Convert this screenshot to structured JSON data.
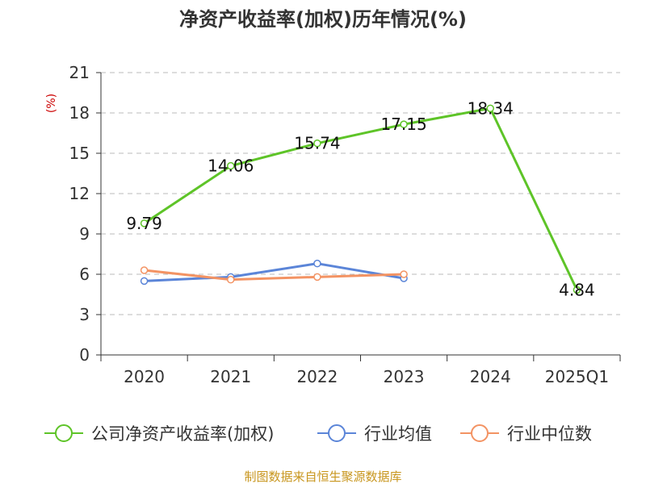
{
  "chart_data": {
    "type": "line",
    "title": "净资产收益率(加权)历年情况(%)",
    "unit_label": "(%)",
    "categories": [
      "2020",
      "2021",
      "2022",
      "2023",
      "2024",
      "2025Q1"
    ],
    "ylim": [
      0,
      21
    ],
    "yticks": [
      0,
      3,
      6,
      9,
      12,
      15,
      18,
      21
    ],
    "ytick_labels": [
      "0",
      "3",
      "6",
      "9",
      "12",
      "15",
      "18",
      "21"
    ],
    "grid": true,
    "legend_position": "bottom",
    "series": [
      {
        "name": "公司净资产收益率(加权)",
        "color": "#5ec428",
        "values": [
          9.79,
          14.06,
          15.74,
          17.15,
          18.34,
          4.84
        ],
        "labels": [
          "9.79",
          "14.06",
          "15.74",
          "17.15",
          "18.34",
          "4.84"
        ]
      },
      {
        "name": "行业均值",
        "color": "#5b85d8",
        "values": [
          5.5,
          5.8,
          6.8,
          5.7,
          null,
          null
        ]
      },
      {
        "name": "行业中位数",
        "color": "#f39363",
        "values": [
          6.3,
          5.6,
          5.8,
          6.0,
          null,
          null
        ]
      }
    ]
  },
  "source_note": "制图数据来自恒生聚源数据库"
}
